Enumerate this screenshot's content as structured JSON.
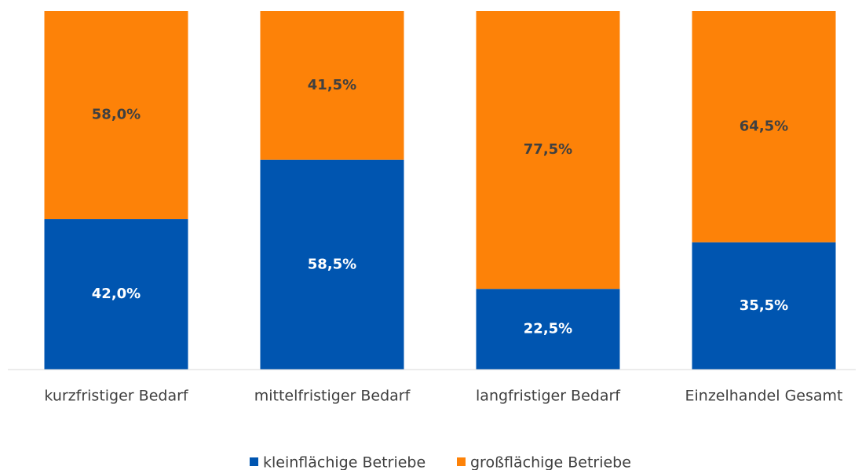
{
  "chart_data": {
    "type": "stacked_bar",
    "categories": [
      "kurzfristiger Bedarf",
      "mittelfristiger Bedarf",
      "langfristiger Bedarf",
      "Einzelhandel Gesamt"
    ],
    "series": [
      {
        "name": "kleinflächige Betriebe",
        "color": "#0055b0",
        "label_color": "#ffffff",
        "values": [
          42.0,
          58.5,
          22.5,
          35.5
        ],
        "value_labels": [
          "42,0%",
          "58,5%",
          "22,5%",
          "35,5%"
        ]
      },
      {
        "name": "großflächige Betriebe",
        "color": "#fd8208",
        "label_color": "#404040",
        "values": [
          58.0,
          41.5,
          77.5,
          64.5
        ],
        "value_labels": [
          "58,0%",
          "41,5%",
          "77,5%",
          "64,5%"
        ]
      }
    ],
    "ylim": [
      0,
      100
    ],
    "legend": "bottom"
  }
}
